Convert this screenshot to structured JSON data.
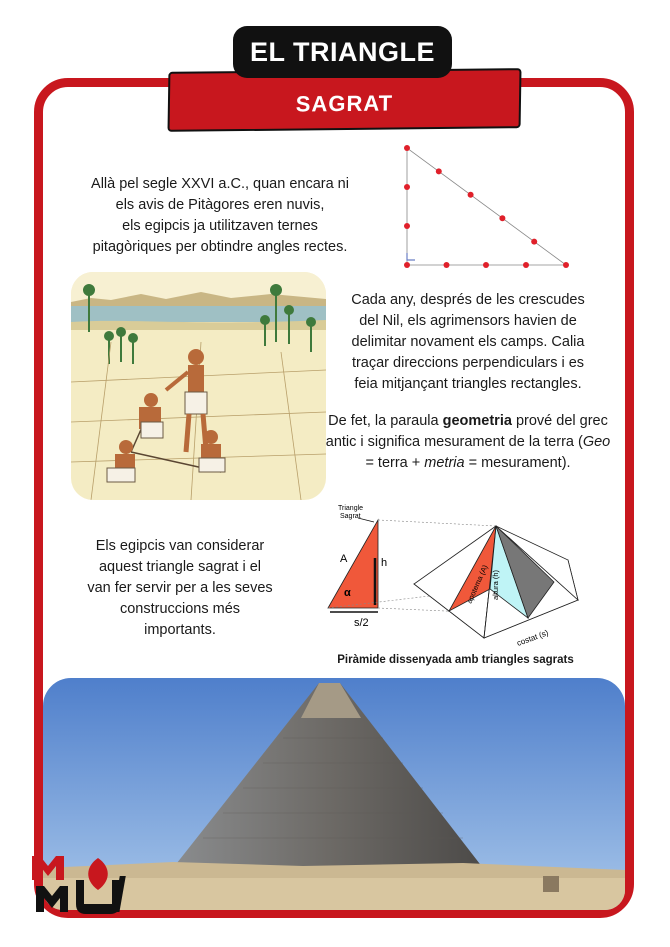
{
  "title": {
    "line1": "EL TRIANGLE",
    "line2": "SAGRAT"
  },
  "paragraphs": {
    "p1": [
      "Allà pel segle XXVI a.C., quan encara ni",
      "els avis de Pitàgores eren nuvis,",
      "els egipcis ja utilitzaven ternes",
      "pitagòriques per obtindre angles rectes."
    ],
    "p2": [
      "Cada any, després de les crescudes",
      "del Nil, els agrimensors havien de",
      "delimitar novament els camps. Calia",
      "traçar direccions perpendiculars i es",
      "feia mitjançant triangles rectangles."
    ],
    "p3": {
      "before": "De fet,  la paraula ",
      "bold": "geometria",
      "after1": " prové del grec antic i significa mesurament de la terra (",
      "geo": "Geo",
      "mid": " = terra + ",
      "metria": "metria",
      "after2": " = mesurament)."
    },
    "p4": [
      "Els egipcis van considerar",
      "aquest triangle sagrat i el",
      "van fer servir per a les seves",
      "construccions més",
      "importants."
    ]
  },
  "diagram": {
    "triangle_label": [
      "Triangle",
      "Sagrat"
    ],
    "label_A": "A",
    "label_h": "h",
    "label_alpha": "α",
    "label_s2": "s/2",
    "label_apotema": "apotema (A)",
    "label_altura": "altura (h)",
    "label_costat": "costat (s)"
  },
  "caption": "Piràmide dissenyada amb triangles sagrats",
  "colors": {
    "accent": "#c8171e",
    "dark": "#111111",
    "dot": "#e0202a",
    "orange": "#f0583a",
    "cyan": "#bff4f6"
  },
  "logo": {
    "text": "MMU"
  }
}
